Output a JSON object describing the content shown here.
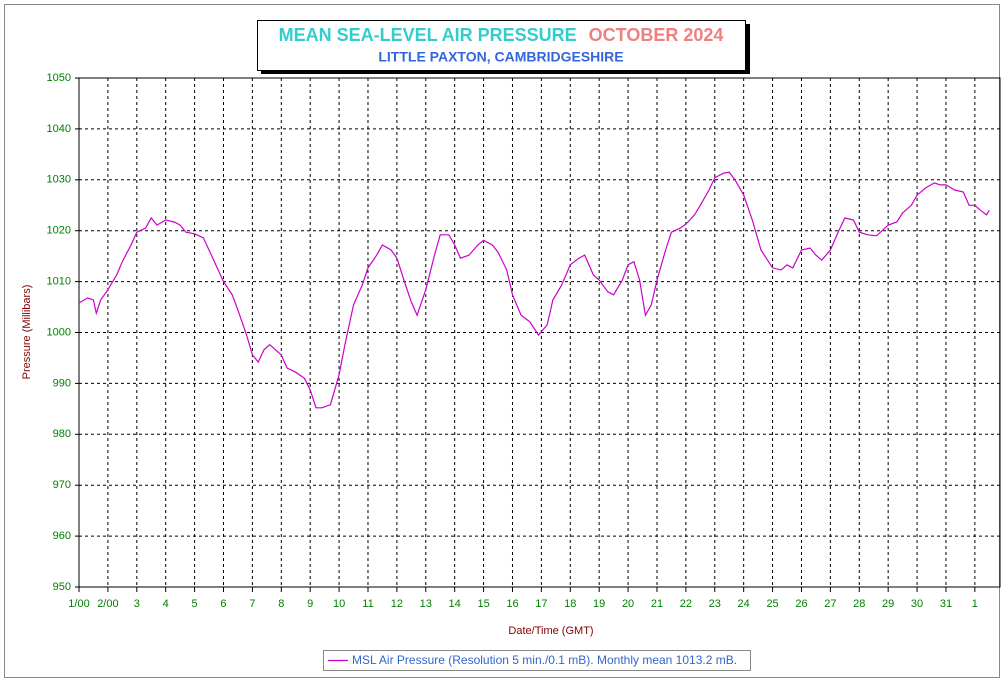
{
  "chart_data": {
    "type": "line",
    "title": "MEAN SEA-LEVEL AIR PRESSURE",
    "period": "OCTOBER 2024",
    "subtitle": "LITTLE PAXTON, CAMBRIDGESHIRE",
    "x_label": "Date/Time (GMT)",
    "y_label": "Pressure (Millibars)",
    "xlim": [
      0,
      31.87
    ],
    "ylim": [
      950,
      1050
    ],
    "yticks": [
      950,
      960,
      970,
      980,
      990,
      1000,
      1010,
      1020,
      1030,
      1040,
      1050
    ],
    "xticks": [
      {
        "value": 0,
        "label": "1/00"
      },
      {
        "value": 1,
        "label": "2/00"
      },
      {
        "value": 2,
        "label": "3"
      },
      {
        "value": 3,
        "label": "4"
      },
      {
        "value": 4,
        "label": "5"
      },
      {
        "value": 5,
        "label": "6"
      },
      {
        "value": 6,
        "label": "7"
      },
      {
        "value": 7,
        "label": "8"
      },
      {
        "value": 8,
        "label": "9"
      },
      {
        "value": 9,
        "label": "10"
      },
      {
        "value": 10,
        "label": "11"
      },
      {
        "value": 11,
        "label": "12"
      },
      {
        "value": 12,
        "label": "13"
      },
      {
        "value": 13,
        "label": "14"
      },
      {
        "value": 14,
        "label": "15"
      },
      {
        "value": 15,
        "label": "16"
      },
      {
        "value": 16,
        "label": "17"
      },
      {
        "value": 17,
        "label": "18"
      },
      {
        "value": 18,
        "label": "19"
      },
      {
        "value": 19,
        "label": "20"
      },
      {
        "value": 20,
        "label": "21"
      },
      {
        "value": 21,
        "label": "22"
      },
      {
        "value": 22,
        "label": "23"
      },
      {
        "value": 23,
        "label": "24"
      },
      {
        "value": 24,
        "label": "25"
      },
      {
        "value": 25,
        "label": "26"
      },
      {
        "value": 26,
        "label": "27"
      },
      {
        "value": 27,
        "label": "28"
      },
      {
        "value": 28,
        "label": "29"
      },
      {
        "value": 29,
        "label": "30"
      },
      {
        "value": 30,
        "label": "31"
      },
      {
        "value": 31,
        "label": "1"
      }
    ],
    "grid": true,
    "x": [
      0,
      0.3,
      0.5,
      0.6,
      0.75,
      1,
      1.3,
      1.5,
      1.8,
      2,
      2.3,
      2.5,
      2.7,
      3,
      3.3,
      3.5,
      3.7,
      4,
      4.3,
      4.5,
      5,
      5.3,
      5.5,
      5.8,
      6,
      6.2,
      6.4,
      6.6,
      6.8,
      7,
      7.2,
      7.5,
      7.8,
      8,
      8.2,
      8.4,
      8.7,
      9,
      9.2,
      9.5,
      9.8,
      10,
      10.3,
      10.5,
      10.8,
      11,
      11.3,
      11.5,
      11.7,
      12,
      12.3,
      12.5,
      12.8,
      13,
      13.2,
      13.5,
      13.8,
      14,
      14.3,
      14.5,
      14.8,
      15,
      15.3,
      15.6,
      15.9,
      16.2,
      16.4,
      16.7,
      17,
      17.3,
      17.5,
      17.8,
      18,
      18.3,
      18.5,
      18.8,
      19,
      19.2,
      19.4,
      19.6,
      19.8,
      20,
      20.3,
      20.5,
      20.8,
      21,
      21.3,
      21.5,
      21.8,
      22,
      22.3,
      22.5,
      22.7,
      23,
      23.3,
      23.6,
      24,
      24.3,
      24.5,
      24.7,
      25,
      25.3,
      25.5,
      25.7,
      26,
      26.3,
      26.5,
      26.8,
      27,
      27.3,
      27.6,
      28,
      28.3,
      28.5,
      28.8,
      29,
      29.3,
      29.6,
      29.8,
      30,
      30.3,
      30.6,
      30.8,
      31,
      31.2,
      31.4,
      31.5
    ],
    "series": [
      {
        "name": "MSL Air Pressure (Resolution 5 min./0.1 mB). Monthly mean 1013.2 mB.",
        "color": "#cc00cc",
        "values": [
          1005.8,
          1006.8,
          1006.4,
          1003.8,
          1006.4,
          1008.4,
          1011.3,
          1013.9,
          1017.2,
          1019.7,
          1020.5,
          1022.5,
          1021.1,
          1022.1,
          1021.7,
          1021.1,
          1019.7,
          1019.4,
          1018.6,
          1016.2,
          1010,
          1007.4,
          1004.4,
          999.5,
          995.6,
          994.2,
          996.6,
          997.6,
          996.6,
          995.6,
          993,
          992.2,
          991,
          988.7,
          985.2,
          985.2,
          985.8,
          991.7,
          997.6,
          1005.4,
          1009.3,
          1012.7,
          1015.2,
          1017.2,
          1016.2,
          1014.6,
          1009.3,
          1006,
          1003.4,
          1008.4,
          1015.2,
          1019.2,
          1019.2,
          1017.2,
          1014.6,
          1015.2,
          1017.2,
          1018.1,
          1017.2,
          1015.8,
          1012.3,
          1007.4,
          1003.4,
          1002.1,
          999.5,
          1001.5,
          1006.4,
          1009.3,
          1013.3,
          1014.6,
          1015.2,
          1011.3,
          1010.3,
          1008,
          1007.4,
          1010.3,
          1013.3,
          1013.9,
          1010.3,
          1003.4,
          1005.4,
          1010.3,
          1016.2,
          1019.7,
          1020.5,
          1021.3,
          1023.1,
          1025,
          1028,
          1030.4,
          1031.3,
          1031.5,
          1030,
          1027,
          1022.1,
          1016.2,
          1012.7,
          1012.3,
          1013.3,
          1012.7,
          1016.2,
          1016.6,
          1015.2,
          1014.2,
          1016.2,
          1020.1,
          1022.5,
          1022.1,
          1019.7,
          1019.2,
          1019,
          1021.1,
          1021.7,
          1023.5,
          1025,
          1027,
          1028.4,
          1029.4,
          1029,
          1029,
          1028,
          1027.6,
          1025,
          1025,
          1024,
          1023.1,
          1024
        ]
      }
    ]
  }
}
